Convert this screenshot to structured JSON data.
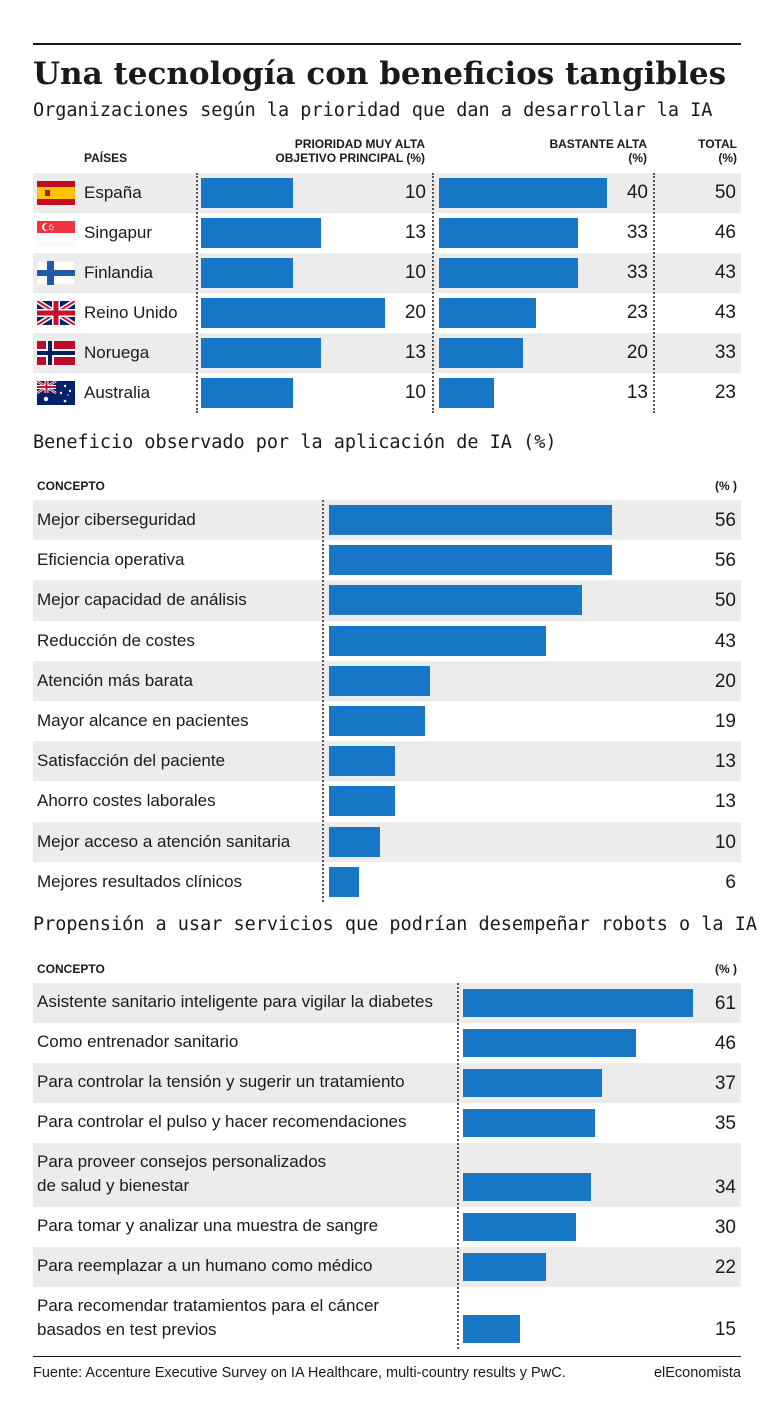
{
  "title": "Una tecnología con beneficios tangibles",
  "footer": {
    "source": "Fuente: Accenture Executive Survey on IA Healthcare, multi-country results y PwC.",
    "brand": "elEconomista"
  },
  "chart_data": [
    {
      "type": "bar",
      "title": "Organizaciones según la prioridad que dan a desarrollar la IA",
      "headers": {
        "category": "PAÍSES",
        "series1_line1": "PRIORIDAD MUY ALTA",
        "series1_line2": "OBJETIVO PRINCIPAL (%)",
        "series2_line1": "BASTANTE ALTA",
        "series2_line2": "(%)",
        "total_line1": "TOTAL",
        "total_line2": "(%)"
      },
      "categories": [
        "España",
        "Singapur",
        "Finlandia",
        "Reino Unido",
        "Noruega",
        "Australia"
      ],
      "flags": [
        "spain-flag-icon",
        "singapore-flag-icon",
        "finland-flag-icon",
        "uk-flag-icon",
        "norway-flag-icon",
        "australia-flag-icon"
      ],
      "series": [
        {
          "name": "PRIORIDAD MUY ALTA OBJETIVO PRINCIPAL (%)",
          "values": [
            10,
            13,
            10,
            20,
            13,
            10
          ]
        },
        {
          "name": "BASTANTE ALTA (%)",
          "values": [
            40,
            33,
            33,
            23,
            20,
            13
          ]
        }
      ],
      "totals": [
        50,
        46,
        43,
        43,
        33,
        23
      ],
      "bar_color": "#1777c6"
    },
    {
      "type": "bar",
      "title": "Beneficio observado por la aplicación de IA (%)",
      "headers": {
        "category": "CONCEPTO",
        "value": "(% )"
      },
      "categories": [
        "Mejor ciberseguridad",
        "Eficiencia operativa",
        "Mejor capacidad de análisis",
        "Reducción de costes",
        "Atención más barata",
        "Mayor alcance en pacientes",
        "Satisfacción del paciente",
        "Ahorro costes laborales",
        "Mejor acceso a atención sanitaria",
        "Mejores resultados clínicos"
      ],
      "values": [
        56,
        56,
        50,
        43,
        20,
        19,
        13,
        13,
        10,
        6
      ],
      "bar_color": "#1777c6"
    },
    {
      "type": "bar",
      "title": "Propensión a usar servicios que podrían desempeñar robots o la IA",
      "headers": {
        "category": "CONCEPTO",
        "value": "(% )"
      },
      "categories": [
        [
          "Asistente sanitario inteligente para vigilar la diabetes"
        ],
        [
          "Como entrenador sanitario"
        ],
        [
          "Para controlar la tensión y sugerir un tratamiento"
        ],
        [
          "Para controlar el pulso y hacer recomendaciones"
        ],
        [
          "Para proveer consejos personalizados",
          "de salud y bienestar"
        ],
        [
          "Para tomar y analizar una muestra de sangre"
        ],
        [
          "Para reemplazar a un humano como médico"
        ],
        [
          "Para recomendar tratamientos para el cáncer",
          "basados en test previos"
        ]
      ],
      "values": [
        61,
        46,
        37,
        35,
        34,
        30,
        22,
        15
      ],
      "bar_color": "#1777c6"
    }
  ]
}
